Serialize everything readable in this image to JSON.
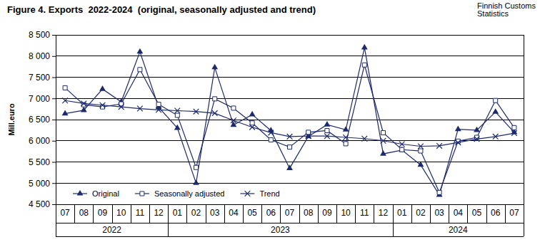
{
  "chart_data": {
    "type": "line",
    "title": "Figure 4. Exports  2022-2024  (original, seasonally adjusted and trend)",
    "source": [
      "Finnish Customs",
      "Statistics"
    ],
    "y_label": "Mill.euro",
    "categories": [
      "07",
      "08",
      "09",
      "10",
      "11",
      "12",
      "01",
      "02",
      "03",
      "04",
      "05",
      "06",
      "07",
      "08",
      "09",
      "10",
      "11",
      "12",
      "01",
      "02",
      "03",
      "04",
      "05",
      "06",
      "07"
    ],
    "year_groups": [
      {
        "label": "2022",
        "count": 6
      },
      {
        "label": "2023",
        "count": 12
      },
      {
        "label": "2024",
        "count": 7
      }
    ],
    "ylim": [
      4500,
      8500
    ],
    "yticks": [
      {
        "value": 4500,
        "label": "4 500"
      },
      {
        "value": 5000,
        "label": "5 000"
      },
      {
        "value": 5500,
        "label": "5 500"
      },
      {
        "value": 6000,
        "label": "6 000"
      },
      {
        "value": 6500,
        "label": "6 500"
      },
      {
        "value": 7000,
        "label": "7 000"
      },
      {
        "value": 7500,
        "label": "7 500"
      },
      {
        "value": 8000,
        "label": "8 000"
      },
      {
        "value": 8500,
        "label": "8 500"
      }
    ],
    "grid": true,
    "legend": "lower left",
    "series": [
      {
        "name": "Original",
        "color": "#1c2a6b",
        "marker": "triangle",
        "values": [
          6640,
          6720,
          7220,
          6920,
          8100,
          6790,
          6300,
          5000,
          7730,
          6370,
          6620,
          6240,
          5350,
          6100,
          6380,
          6260,
          8200,
          5690,
          5780,
          5430,
          4720,
          6270,
          6250,
          6680,
          6200
        ]
      },
      {
        "name": "Seasonally adjusted",
        "color": "#1c2a6b",
        "marker": "square",
        "values": [
          7250,
          6850,
          6800,
          6870,
          7680,
          6860,
          6600,
          5370,
          6990,
          6770,
          6420,
          6020,
          5850,
          6200,
          6240,
          5930,
          7790,
          6190,
          5790,
          5760,
          4780,
          5990,
          6080,
          6950,
          6310
        ]
      },
      {
        "name": "Trend",
        "color": "#1c2a6b",
        "marker": "x",
        "values": [
          6950,
          6880,
          6840,
          6800,
          6760,
          6730,
          6710,
          6690,
          6650,
          6480,
          6320,
          6190,
          6100,
          6110,
          6110,
          6080,
          6050,
          6000,
          5920,
          5870,
          5880,
          5960,
          6040,
          6100,
          6180
        ]
      }
    ]
  }
}
